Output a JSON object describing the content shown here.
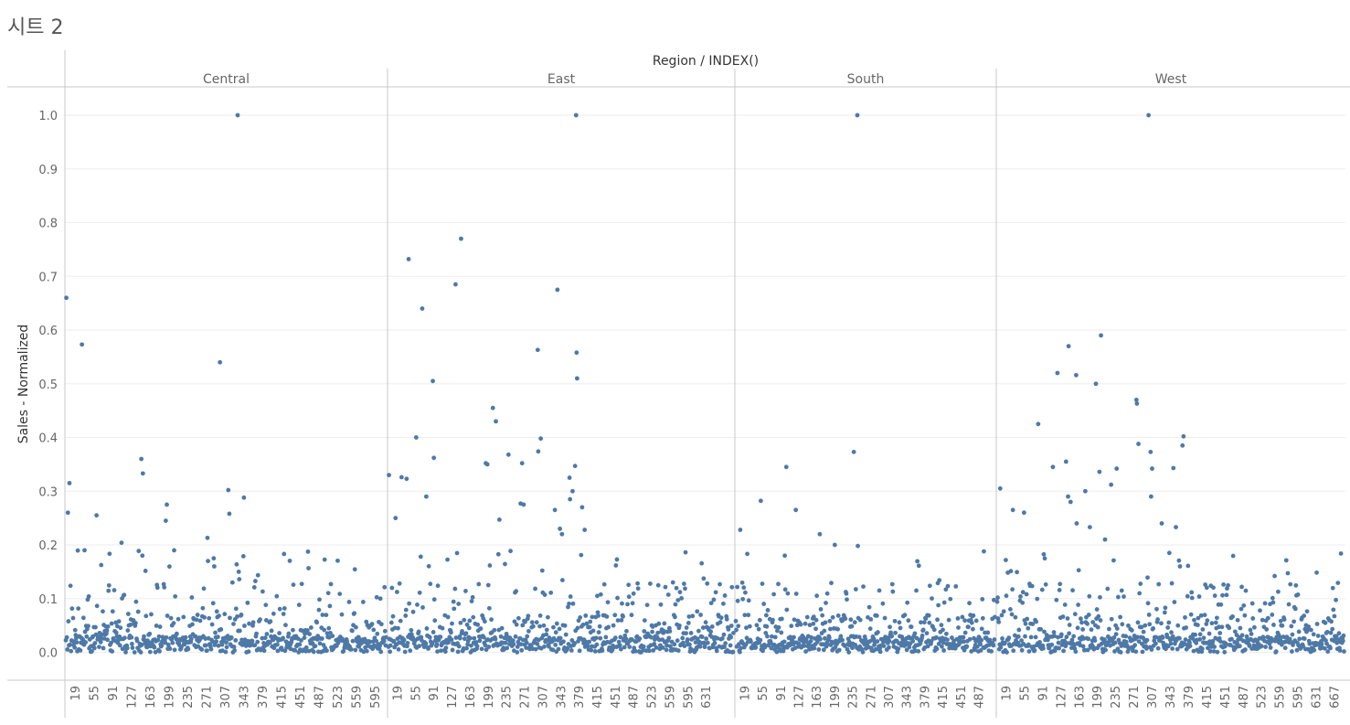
{
  "sheet": {
    "title": "시트 2"
  },
  "chart_data": {
    "type": "scatter",
    "column_header_title": "Region / INDEX()",
    "ylabel": "Sales - Normalized",
    "ylim": [
      0,
      1.05
    ],
    "y_ticks": [
      "0.0",
      "0.1",
      "0.2",
      "0.3",
      "0.4",
      "0.5",
      "0.6",
      "0.7",
      "0.8",
      "0.9",
      "1.0"
    ],
    "grid": true,
    "marker_color": "#4e79a7",
    "panels": [
      {
        "name": "Central",
        "count": 616,
        "x_ticks": [
          "19",
          "55",
          "91",
          "127",
          "163",
          "199",
          "235",
          "271",
          "307",
          "343",
          "379",
          "415",
          "451",
          "487",
          "523",
          "559",
          "595"
        ],
        "highlights": [
          [
            1,
            0.66
          ],
          [
            4,
            0.26
          ],
          [
            7,
            0.315
          ],
          [
            31,
            0.573
          ],
          [
            36,
            0.19
          ],
          [
            59,
            0.255
          ],
          [
            107,
            0.204
          ],
          [
            145,
            0.36
          ],
          [
            148,
            0.333
          ],
          [
            147,
            0.18
          ],
          [
            194,
            0.275
          ],
          [
            192,
            0.245
          ],
          [
            272,
            0.213
          ],
          [
            284,
            0.175
          ],
          [
            296,
            0.54
          ],
          [
            312,
            0.302
          ],
          [
            314,
            0.258
          ],
          [
            330,
            1.0
          ],
          [
            342,
            0.288
          ],
          [
            285,
            0.16
          ],
          [
            332,
            0.15
          ],
          [
            320,
            0.13
          ]
        ]
      },
      {
        "name": "East",
        "count": 685,
        "x_ticks": [
          "19",
          "55",
          "91",
          "127",
          "163",
          "199",
          "235",
          "271",
          "307",
          "343",
          "379",
          "415",
          "451",
          "487",
          "523",
          "559",
          "595",
          "631"
        ],
        "highlights": [
          [
            1,
            0.33
          ],
          [
            14,
            0.25
          ],
          [
            26,
            0.326
          ],
          [
            36,
            0.323
          ],
          [
            40,
            0.732
          ],
          [
            55,
            0.4
          ],
          [
            67,
            0.64
          ],
          [
            75,
            0.29
          ],
          [
            88,
            0.505
          ],
          [
            90,
            0.362
          ],
          [
            133,
            0.685
          ],
          [
            144,
            0.77
          ],
          [
            193,
            0.352
          ],
          [
            196,
            0.35
          ],
          [
            207,
            0.455
          ],
          [
            213,
            0.43
          ],
          [
            220,
            0.247
          ],
          [
            238,
            0.368
          ],
          [
            262,
            0.355
          ],
          [
            265,
            0.352
          ],
          [
            262,
            0.277
          ],
          [
            268,
            0.275
          ],
          [
            296,
            0.563
          ],
          [
            297,
            0.374
          ],
          [
            302,
            0.398
          ],
          [
            330,
            0.265
          ],
          [
            335,
            0.675
          ],
          [
            340,
            0.23
          ],
          [
            344,
            0.22
          ],
          [
            359,
            0.325
          ],
          [
            365,
            0.3
          ],
          [
            360,
            0.285
          ],
          [
            370,
            0.347
          ],
          [
            372,
            1.0
          ],
          [
            373,
            0.558
          ],
          [
            374,
            0.51
          ],
          [
            384,
            0.27
          ],
          [
            389,
            0.228
          ]
        ]
      },
      {
        "name": "South",
        "count": 519,
        "x_ticks": [
          "19",
          "55",
          "91",
          "127",
          "163",
          "199",
          "235",
          "271",
          "307",
          "343",
          "379",
          "415",
          "451",
          "487"
        ],
        "highlights": [
          [
            9,
            0.228
          ],
          [
            50,
            0.282
          ],
          [
            101,
            0.345
          ],
          [
            98,
            0.18
          ],
          [
            120,
            0.265
          ],
          [
            168,
            0.22
          ],
          [
            198,
            0.2
          ],
          [
            236,
            0.373
          ],
          [
            243,
            1.0
          ],
          [
            244,
            0.198
          ]
        ]
      },
      {
        "name": "West",
        "count": 686,
        "x_ticks": [
          "19",
          "55",
          "91",
          "127",
          "163",
          "199",
          "235",
          "271",
          "307",
          "343",
          "379",
          "415",
          "451",
          "487",
          "523",
          "559",
          "595",
          "631",
          "667"
        ],
        "highlights": [
          [
            6,
            0.305
          ],
          [
            31,
            0.265
          ],
          [
            53,
            0.26
          ],
          [
            81,
            0.425
          ],
          [
            110,
            0.345
          ],
          [
            119,
            0.52
          ],
          [
            136,
            0.355
          ],
          [
            141,
            0.57
          ],
          [
            140,
            0.29
          ],
          [
            145,
            0.28
          ],
          [
            156,
            0.516
          ],
          [
            157,
            0.24
          ],
          [
            174,
            0.3
          ],
          [
            183,
            0.233
          ],
          [
            195,
            0.5
          ],
          [
            202,
            0.336
          ],
          [
            205,
            0.59
          ],
          [
            213,
            0.21
          ],
          [
            225,
            0.312
          ],
          [
            236,
            0.342
          ],
          [
            275,
            0.47
          ],
          [
            276,
            0.463
          ],
          [
            279,
            0.388
          ],
          [
            299,
            1.0
          ],
          [
            303,
            0.373
          ],
          [
            306,
            0.342
          ],
          [
            304,
            0.29
          ],
          [
            325,
            0.24
          ],
          [
            348,
            0.343
          ],
          [
            353,
            0.233
          ],
          [
            361,
            0.16
          ],
          [
            366,
            0.385
          ],
          [
            368,
            0.402
          ]
        ]
      }
    ]
  }
}
